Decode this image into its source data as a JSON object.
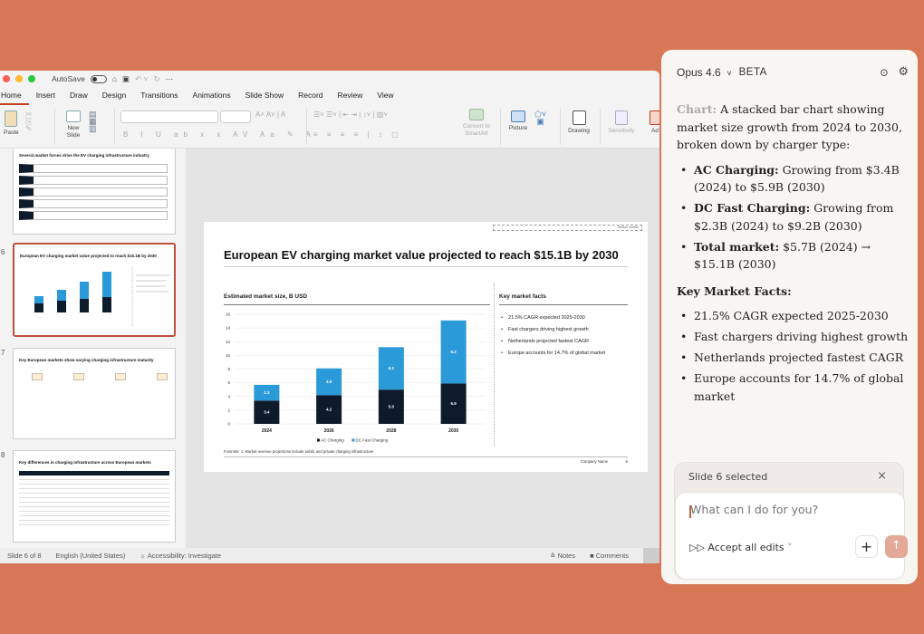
{
  "app": {
    "autosave_label": "AutoSave",
    "tabs": [
      "Home",
      "Insert",
      "Draw",
      "Design",
      "Transitions",
      "Animations",
      "Slide Show",
      "Record",
      "Review",
      "View"
    ],
    "active_tab": "Home"
  },
  "ribbon": {
    "paste": "Paste",
    "new_slide": "New Slide",
    "convert": "Convert to SmartArt",
    "picture": "Picture",
    "drawing": "Drawing",
    "sensitivity": "Sensitivity",
    "add": "Ad"
  },
  "thumbnails": [
    {
      "num": "",
      "title": "Several market forces drive the EV charging infrastructure industry"
    },
    {
      "num": "6",
      "title": "European EV charging market value projected to reach $15.1B by 2030",
      "selected": true
    },
    {
      "num": "7",
      "title": "Key European markets show varying charging infrastructure maturity"
    },
    {
      "num": "8",
      "title": "Key differences in charging infrastructure across European markets"
    }
  ],
  "slide": {
    "tag": "Section marker",
    "title": "European EV charging market value projected to reach $15.1B by 2030",
    "chart_heading": "Estimated market size, B USD",
    "facts_heading": "Key market facts",
    "facts": [
      "21.5% CAGR expected 2025-2030",
      "Fast chargers driving highest growth",
      "Netherlands projected fastest CAGR",
      "Europe accounts for 14.7% of global market"
    ],
    "footnote": "Footnote: 1. Market revenue projections include public and private charging infrastructure",
    "company": "Company Name",
    "page": "6"
  },
  "chart_data": {
    "type": "bar",
    "stacked": true,
    "categories": [
      "2024",
      "2026",
      "2028",
      "2030"
    ],
    "series": [
      {
        "name": "AC Charging",
        "values": [
          3.4,
          4.2,
          5.0,
          5.9
        ],
        "color": "#0d1b2a"
      },
      {
        "name": "DC Fast Charging",
        "values": [
          2.3,
          3.9,
          6.2,
          9.2
        ],
        "color": "#2b9ad8"
      }
    ],
    "ylim": [
      0,
      16
    ],
    "yticks": [
      "0",
      "2",
      "4",
      "6",
      "8",
      "10",
      "12",
      "14",
      "16"
    ],
    "legend": "bottom",
    "grid": true,
    "title": "Estimated market size, B USD"
  },
  "status": {
    "slide": "Slide 6 of 8",
    "language": "English (United States)",
    "accessibility": "Accessibility: Investigate",
    "notes": "Notes",
    "comments": "Comments"
  },
  "panel": {
    "model": "Opus 4.6",
    "badge": "BETA",
    "intro_bold": "Chart:",
    "intro": " A stacked bar chart showing market size growth from 2024 to 2030, broken down by charger type:",
    "items": [
      {
        "b": "AC Charging:",
        "t": " Growing from $3.4B (2024) to $5.9B (2030)"
      },
      {
        "b": "DC Fast Charging:",
        "t": " Growing from $2.3B (2024) to $9.2B (2030)"
      },
      {
        "b": "Total market:",
        "t": " $5.7B (2024) → $15.1B (2030)"
      }
    ],
    "facts_heading": "Key Market Facts:",
    "facts": [
      "21.5% CAGR expected 2025-2030",
      "Fast chargers driving highest growth",
      "Netherlands projected fastest CAGR",
      "Europe accounts for 14.7% of global market"
    ],
    "context": "Slide 6 selected",
    "placeholder": "What can I do for you?",
    "accept": "Accept all edits",
    "accent": "#e3a896"
  }
}
